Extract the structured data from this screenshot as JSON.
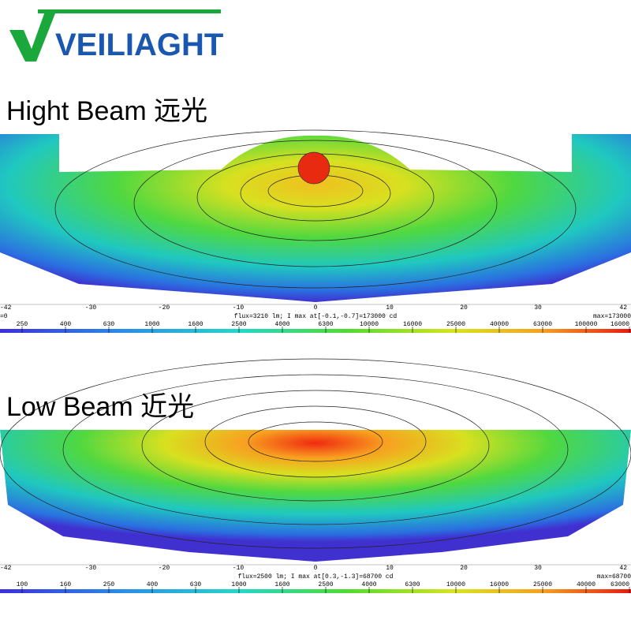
{
  "logo": {
    "text": "VEILIAGHT"
  },
  "sections": [
    {
      "title": "Hight Beam  远光",
      "x_ticks": [
        "-42",
        "-30",
        "-20",
        "-10",
        "0",
        "10",
        "20",
        "30",
        "42"
      ],
      "origin_label": "=0",
      "info": "flux=3210 lm; I max at[-0.1,-0.7]=173000 cd",
      "max": "max=173000",
      "scale_labels": [
        "250",
        "400",
        "630",
        "1000",
        "1600",
        "2500",
        "4000",
        "6300",
        "10000",
        "16000",
        "25000",
        "40000",
        "63000",
        "100000",
        "16000"
      ]
    },
    {
      "title": "Low Beam 近光",
      "x_ticks": [
        "-42",
        "-30",
        "-20",
        "-10",
        "0",
        "10",
        "20",
        "30",
        "42"
      ],
      "info": "flux=2500 lm; I max at[0.3,-1.3]=68700 cd",
      "max": "max=68700",
      "scale_labels": [
        "100",
        "160",
        "250",
        "400",
        "630",
        "1000",
        "1600",
        "2500",
        "4000",
        "6300",
        "10000",
        "16000",
        "25000",
        "40000",
        "63000"
      ]
    }
  ]
}
